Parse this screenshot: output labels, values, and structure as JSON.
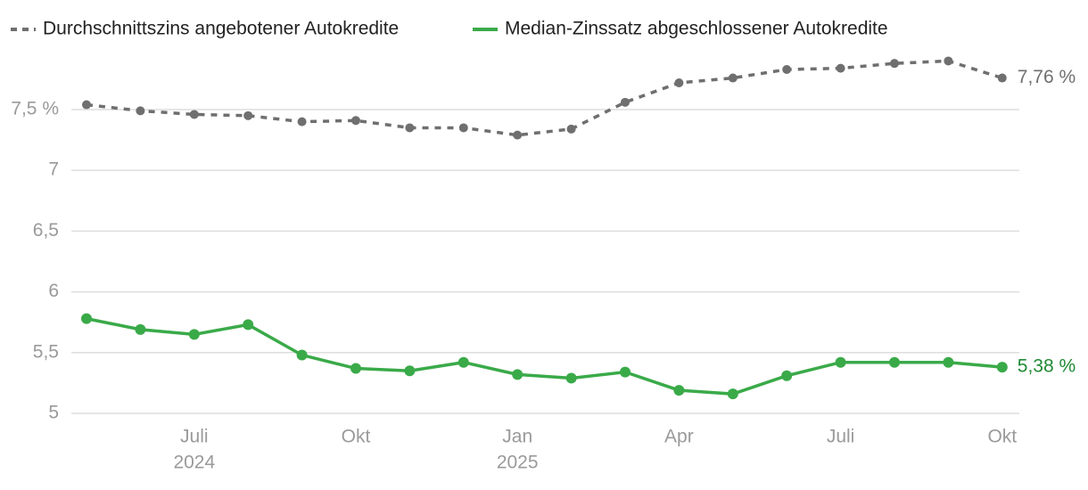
{
  "chart_data": {
    "type": "line",
    "categories": [
      null,
      null,
      "Juli",
      null,
      null,
      "Okt",
      null,
      null,
      "Jan",
      null,
      null,
      "Apr",
      null,
      null,
      "Juli",
      null,
      null,
      "Okt"
    ],
    "years": [
      null,
      null,
      "2024",
      null,
      null,
      null,
      null,
      null,
      "2025",
      null,
      null,
      null,
      null,
      null,
      null,
      null,
      null,
      null
    ],
    "series": [
      {
        "name": "Durchschnittszins angebotener Autokredite",
        "color": "#6f6f6f",
        "dashed": true,
        "values": [
          7.54,
          7.49,
          7.46,
          7.45,
          7.4,
          7.41,
          7.35,
          7.35,
          7.29,
          7.34,
          7.56,
          7.72,
          7.76,
          7.83,
          7.84,
          7.88,
          7.9,
          7.76
        ],
        "value_labels": [
          null,
          null,
          null,
          null,
          null,
          null,
          null,
          null,
          null,
          null,
          null,
          null,
          null,
          null,
          null,
          null,
          null,
          "7,76 %"
        ]
      },
      {
        "name": "Median-Zinssatz abgeschlossener Autokredite",
        "color": "#3aaa49",
        "label_color": "#1f8a34",
        "dashed": false,
        "values": [
          5.78,
          5.69,
          5.65,
          5.73,
          5.48,
          5.37,
          5.35,
          5.42,
          5.32,
          5.29,
          5.34,
          5.19,
          5.16,
          5.31,
          5.42,
          5.42,
          5.42,
          5.38
        ],
        "value_labels": [
          null,
          null,
          null,
          null,
          null,
          null,
          null,
          null,
          null,
          null,
          null,
          null,
          null,
          null,
          null,
          null,
          null,
          "5,38 %"
        ]
      }
    ],
    "ylim": [
      5,
      7.95
    ],
    "yticks": [
      5,
      {
        "value": 5.5,
        "label": "5,5"
      },
      6,
      {
        "value": 6.5,
        "label": "6,5"
      },
      7,
      {
        "value": 7.5,
        "label": "7,5 %"
      }
    ],
    "grid": true,
    "legend": "top-left"
  }
}
